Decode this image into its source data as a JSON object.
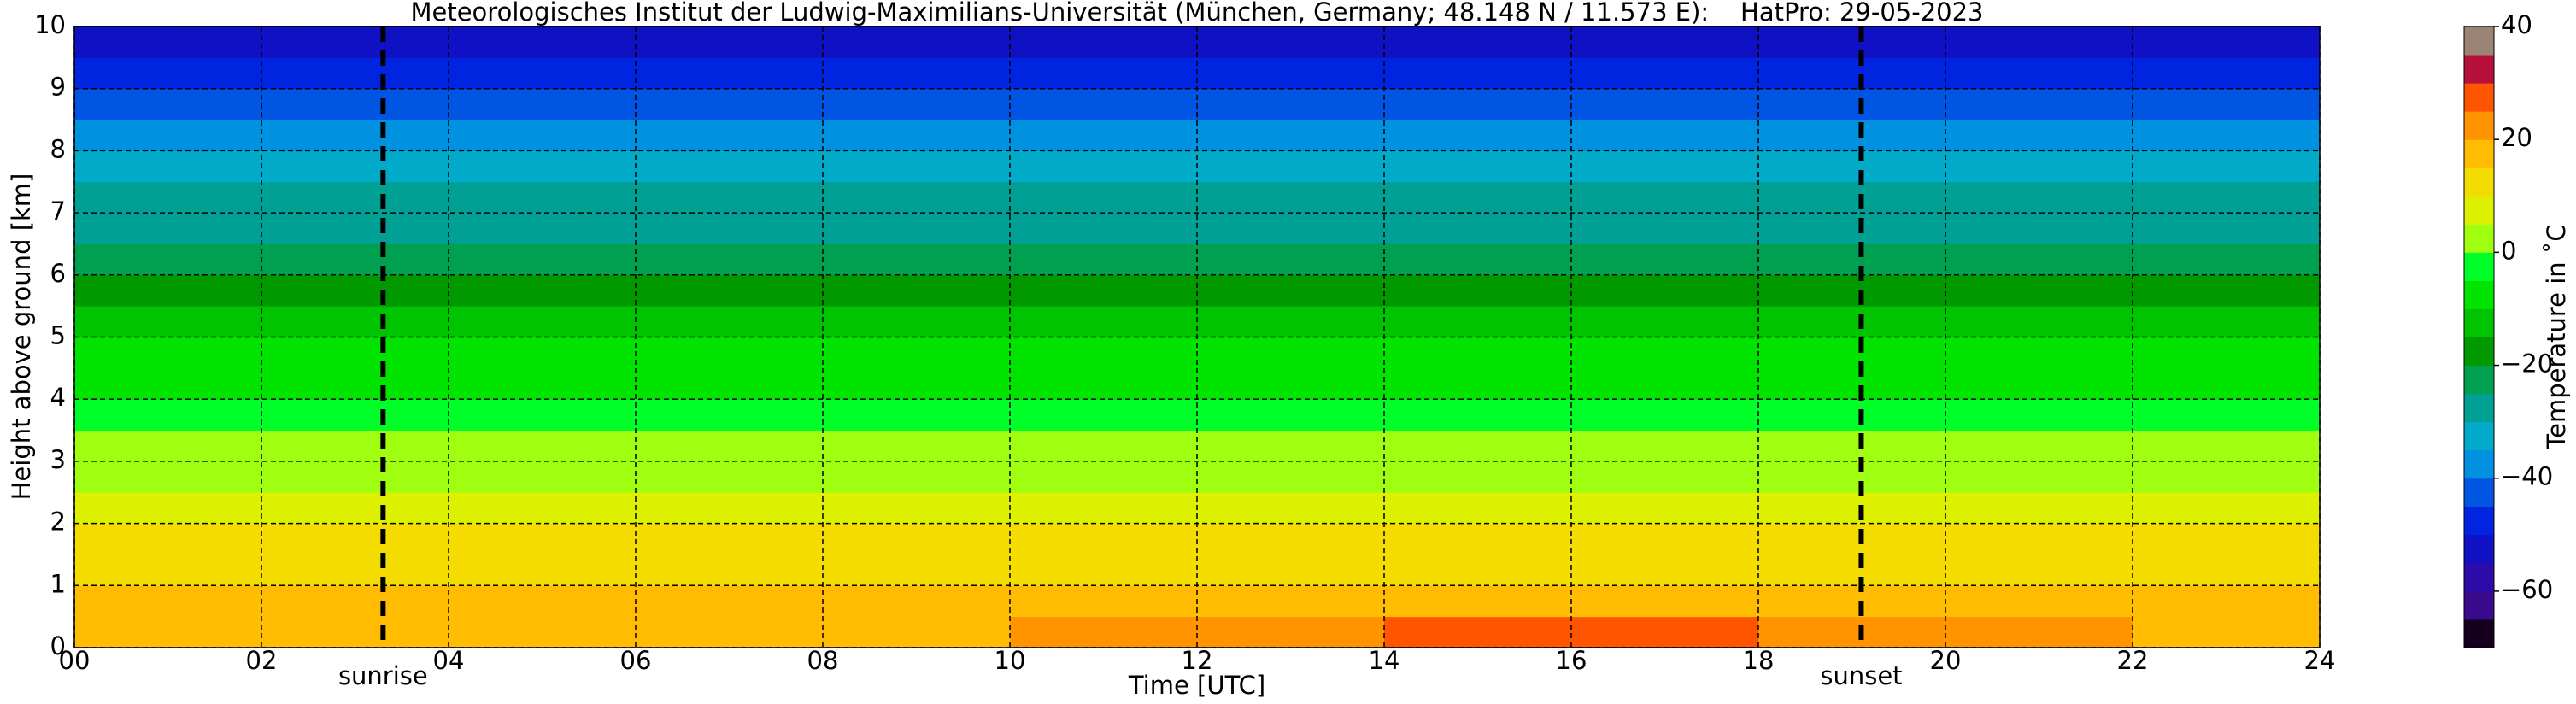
{
  "chart_data": {
    "type": "heatmap",
    "title": "Meteorologisches Institut der Ludwig-Maximilians-Universität (München, Germany; 48.148 N / 11.573 E):    HatPro: 29-05-2023",
    "x_label": "Time [UTC]",
    "y_label": "Height above ground [km]",
    "xbins": [
      0,
      2,
      4,
      6,
      8,
      10,
      12,
      14,
      16,
      18,
      20,
      22,
      24
    ],
    "ybins": [
      0,
      0.5,
      1,
      1.5,
      2,
      2.5,
      3,
      3.5,
      4,
      4.5,
      5,
      5.5,
      6,
      6.5,
      7,
      7.5,
      8,
      8.5,
      9,
      9.5,
      10
    ],
    "values": [
      [
        17,
        16,
        16,
        17,
        19,
        21,
        23,
        25,
        26,
        24,
        20,
        18
      ],
      [
        15,
        15,
        15,
        15,
        16,
        17,
        18,
        19,
        19,
        18,
        16,
        15
      ],
      [
        12,
        12,
        12,
        12,
        12,
        12,
        13,
        13,
        13,
        13,
        12,
        12
      ],
      [
        10,
        10,
        10,
        10,
        10,
        10,
        10,
        10,
        10,
        10,
        10,
        10
      ],
      [
        7,
        7,
        7,
        7,
        7,
        7,
        7,
        7,
        7,
        7,
        7,
        7
      ],
      [
        4,
        4,
        4,
        4,
        4,
        4,
        4,
        4,
        4,
        4,
        4,
        4
      ],
      [
        1,
        1,
        1,
        1,
        1,
        1,
        1,
        1,
        1,
        1,
        1,
        1
      ],
      [
        -2,
        -2,
        -2,
        -2,
        -2,
        -2,
        -2,
        -2,
        -2,
        -2,
        -2,
        -2
      ],
      [
        -6,
        -6,
        -6,
        -6,
        -6,
        -6,
        -6,
        -6,
        -6,
        -6,
        -6,
        -6
      ],
      [
        -9,
        -9,
        -9,
        -9,
        -9,
        -9,
        -9,
        -9,
        -9,
        -9,
        -9,
        -9
      ],
      [
        -13,
        -13,
        -13,
        -13,
        -13,
        -13,
        -13,
        -13,
        -13,
        -13,
        -13,
        -13
      ],
      [
        -17,
        -17,
        -17,
        -17,
        -17,
        -17,
        -17,
        -17,
        -17,
        -17,
        -17,
        -17
      ],
      [
        -21,
        -21,
        -21,
        -21,
        -21,
        -21,
        -21,
        -21,
        -21,
        -21,
        -21,
        -21
      ],
      [
        -26,
        -26,
        -26,
        -26,
        -26,
        -26,
        -26,
        -26,
        -26,
        -26,
        -26,
        -26
      ],
      [
        -30,
        -30,
        -30,
        -30,
        -30,
        -30,
        -30,
        -30,
        -30,
        -30,
        -30,
        -30
      ],
      [
        -34,
        -34,
        -34,
        -34,
        -34,
        -34,
        -34,
        -34,
        -34,
        -34,
        -34,
        -34
      ],
      [
        -38,
        -38,
        -38,
        -38,
        -38,
        -38,
        -38,
        -38,
        -38,
        -38,
        -38,
        -38
      ],
      [
        -44,
        -44,
        -44,
        -44,
        -44,
        -44,
        -44,
        -44,
        -44,
        -44,
        -44,
        -44
      ],
      [
        -48,
        -48,
        -48,
        -48,
        -48,
        -48,
        -48,
        -48,
        -48,
        -48,
        -48,
        -48
      ],
      [
        -52,
        -52,
        -52,
        -52,
        -52,
        -52,
        -52,
        -52,
        -52,
        -52,
        -52,
        -52
      ]
    ],
    "xlim": [
      0,
      24
    ],
    "ylim": [
      0,
      10
    ],
    "xticks": [
      {
        "value": 0,
        "label": "00"
      },
      {
        "value": 2,
        "label": "02"
      },
      {
        "value": 4,
        "label": "04"
      },
      {
        "value": 6,
        "label": "06"
      },
      {
        "value": 8,
        "label": "08"
      },
      10,
      12,
      14,
      16,
      18,
      20,
      22,
      24
    ],
    "yticks": [
      0,
      1,
      2,
      3,
      4,
      5,
      6,
      7,
      8,
      9,
      10
    ],
    "grid": true,
    "annotations": [
      {
        "text": "sunrise",
        "x": 3.3
      },
      {
        "text": "sunset",
        "x": 19.1
      }
    ],
    "colorbar": {
      "label": "Temperature in ˚C",
      "lim": [
        -70,
        40
      ],
      "ticks": [
        {
          "value": -60,
          "label": "−60"
        },
        {
          "value": -40,
          "label": "−40"
        },
        {
          "value": -20,
          "label": "−20"
        },
        0,
        20,
        40
      ],
      "colors": [
        "#14001e",
        "#3a0a8c",
        "#2c0ca8",
        "#1010c4",
        "#0024e0",
        "#0056e2",
        "#0092e0",
        "#00aac8",
        "#00a094",
        "#00a050",
        "#009a00",
        "#00c400",
        "#00e400",
        "#00ff28",
        "#a0ff10",
        "#dcf000",
        "#f4dc00",
        "#ffbc00",
        "#ff9400",
        "#ff5400",
        "#b8103c",
        "#9c8474"
      ]
    }
  }
}
